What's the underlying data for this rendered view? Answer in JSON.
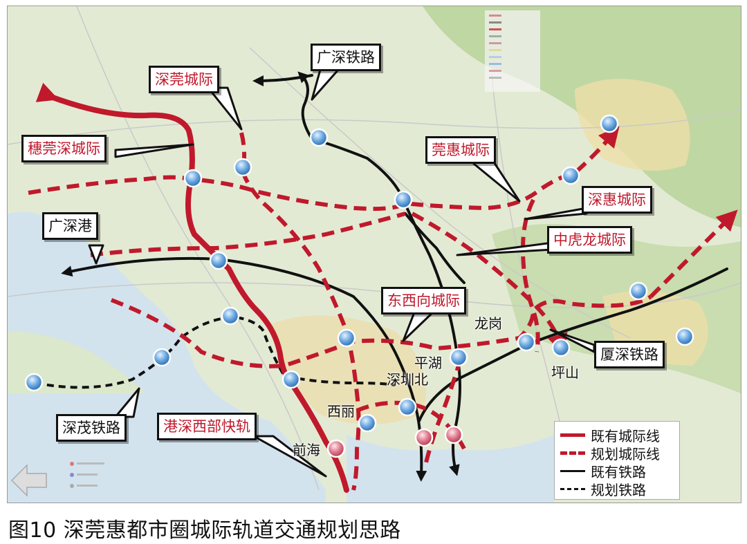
{
  "colors": {
    "intercity_existing": "#c0192c",
    "intercity_planned": "#c0192c",
    "railway_existing": "#111111",
    "railway_planned": "#111111",
    "station": "#6aa7e0",
    "hk_station": "#e07a8c",
    "land": "#dfe8cf",
    "water": "#cfe0ee",
    "urban": "#f0e6b8"
  },
  "callouts": [
    {
      "id": "guangshen-railway",
      "label": "广深铁路",
      "style": "black"
    },
    {
      "id": "shenguan-intercity",
      "label": "深莞城际",
      "style": "red"
    },
    {
      "id": "suiguanshen-intercity",
      "label": "穗莞深城际",
      "style": "red"
    },
    {
      "id": "guanhui-intercity",
      "label": "莞惠城际",
      "style": "red"
    },
    {
      "id": "shenhui-intercity",
      "label": "深惠城际",
      "style": "red"
    },
    {
      "id": "guangshen-port",
      "label": "广深港",
      "style": "black"
    },
    {
      "id": "zhonghulong-intercity",
      "label": "中虎龙城际",
      "style": "red"
    },
    {
      "id": "dongxi-intercity",
      "label": "东西向城际",
      "style": "red"
    },
    {
      "id": "xiashen-railway",
      "label": "厦深铁路",
      "style": "black"
    },
    {
      "id": "shenmao-railway",
      "label": "深茂铁路",
      "style": "black"
    },
    {
      "id": "gangshen-west-rail",
      "label": "港深西部快轨",
      "style": "red"
    }
  ],
  "places": {
    "longgang": "龙岗",
    "pinghu": "平湖",
    "shenzhenbei": "深圳北",
    "pingshan": "坪山",
    "xili": "西丽",
    "qianhai": "前海"
  },
  "legend": [
    {
      "label": "既有城际线",
      "line": "solid",
      "color": "#c0192c"
    },
    {
      "label": "规划城际线",
      "line": "dashed",
      "color": "#c0192c"
    },
    {
      "label": "既有铁路",
      "line": "solid",
      "color": "#111111"
    },
    {
      "label": "规划铁路",
      "line": "dashed",
      "color": "#111111"
    }
  ],
  "caption": "图10  深莞惠都市圈城际轨道交通规划思路"
}
